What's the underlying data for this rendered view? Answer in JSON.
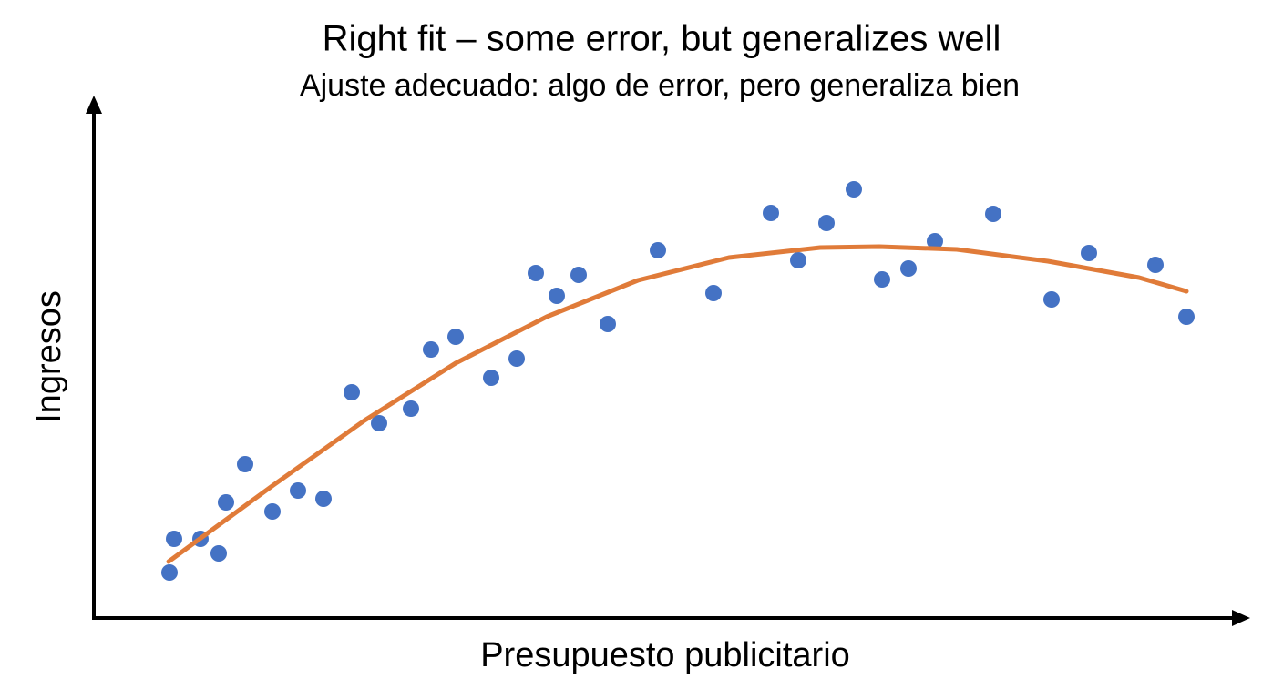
{
  "chart_data": {
    "type": "scatter",
    "title": "Right fit – some error, but generalizes well",
    "subtitle": "Ajuste adecuado: algo de error, pero generaliza bien",
    "x_label": "Presupuesto publicitario",
    "y_label": "Ingresos",
    "xlim": [
      0,
      1267
    ],
    "ylim": [
      0,
      574
    ],
    "series": [
      {
        "type": "scatter",
        "color": "#4472c4",
        "x": [
          83,
          88,
          117,
          137,
          145,
          166,
          196,
          224,
          252,
          283,
          313,
          348,
          370,
          397,
          436,
          464,
          485,
          508,
          532,
          564,
          619,
          680,
          743,
          773,
          804,
          834,
          865,
          894,
          923,
          987,
          1051,
          1092,
          1165,
          1199
        ],
        "values": [
          50,
          87,
          87,
          71,
          127,
          169,
          117,
          140,
          131,
          248,
          214,
          230,
          295,
          309,
          264,
          285,
          379,
          354,
          377,
          323,
          404,
          357,
          445,
          393,
          434,
          471,
          372,
          384,
          414,
          444,
          350,
          401,
          388,
          331
        ]
      },
      {
        "type": "line",
        "color": "#e07b39",
        "x": [
          82,
          197,
          297,
          397,
          497,
          597,
          697,
          797,
          862,
          947,
          1047,
          1147,
          1199
        ],
        "values": [
          62,
          146,
          217,
          280,
          331,
          371,
          396,
          407,
          408,
          405,
          392,
          374,
          359
        ]
      }
    ]
  }
}
